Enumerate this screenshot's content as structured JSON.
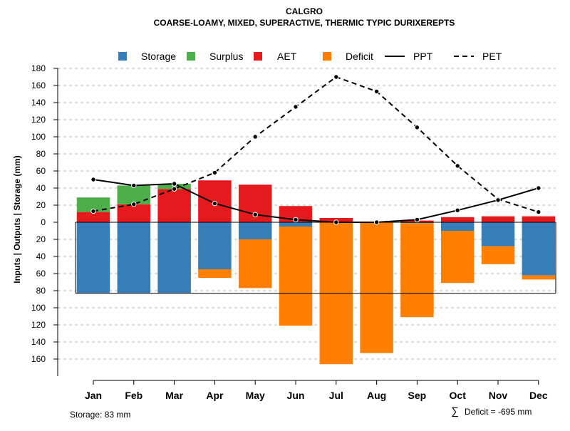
{
  "chart_data": {
    "type": "bar",
    "title": "CALGRO",
    "subtitle": "COARSE-LOAMY, MIXED, SUPERACTIVE, THERMIC TYPIC DURIXEREPTS",
    "ylabel": "Inputs | Outputs | Storage    (mm)",
    "ylim": [
      -170,
      180
    ],
    "yticks": [
      180,
      160,
      140,
      120,
      100,
      80,
      60,
      40,
      20,
      0,
      -20,
      -40,
      -60,
      -80,
      -100,
      -120,
      -140,
      -160
    ],
    "ytick_labels": [
      "180",
      "160",
      "140",
      "120",
      "100",
      "80",
      "60",
      "40",
      "20",
      "0",
      "20",
      "40",
      "60",
      "80",
      "100",
      "120",
      "140",
      "160"
    ],
    "categories": [
      "Jan",
      "Feb",
      "Mar",
      "Apr",
      "May",
      "Jun",
      "Jul",
      "Aug",
      "Sep",
      "Oct",
      "Nov",
      "Dec"
    ],
    "capacity": 83,
    "series": [
      {
        "name": "Storage",
        "color": "#377EB8",
        "values": [
          83,
          83,
          83,
          55,
          20,
          5,
          0,
          0,
          1,
          10,
          28,
          62
        ]
      },
      {
        "name": "Surplus",
        "color": "#4DAF4A",
        "values": [
          17,
          22,
          6,
          0,
          0,
          0,
          0,
          0,
          0,
          0,
          0,
          0
        ]
      },
      {
        "name": "AET",
        "color": "#E41A1C",
        "values": [
          12,
          21,
          39,
          49,
          44,
          19,
          5,
          0,
          2,
          6,
          7,
          7
        ]
      },
      {
        "name": "Deficit",
        "color": "#FF7F00",
        "values": [
          0,
          0,
          0,
          10,
          57,
          116,
          166,
          153,
          110,
          61,
          21,
          5
        ]
      },
      {
        "name": "PPT",
        "color": "#000000",
        "style": "solid",
        "values": [
          50,
          43,
          45,
          22,
          9,
          3,
          0,
          0,
          3,
          14,
          26,
          40
        ]
      },
      {
        "name": "PET",
        "color": "#000000",
        "style": "dashed",
        "values": [
          13,
          21,
          39,
          58,
          100,
          135,
          170,
          153,
          111,
          66,
          27,
          12
        ]
      }
    ],
    "legend": [
      "Storage",
      "Surplus",
      "AET",
      "Deficit",
      "PPT",
      "PET"
    ],
    "legend_position": "top",
    "grid": true
  },
  "footer": {
    "storage_note": "Storage: 83 mm",
    "deficit_symbol": "∑",
    "deficit_note": "Deficit = -695 mm"
  }
}
